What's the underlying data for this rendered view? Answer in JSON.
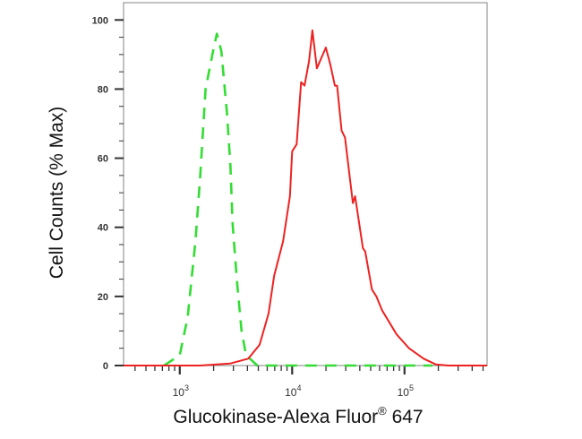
{
  "chart_data": {
    "type": "line",
    "title": "",
    "xlabel": "Glucokinase-Alexa Fluor",
    "xlabel_superscript": "®",
    "xlabel_suffix": " 647",
    "ylabel": "Cell Counts (% Max)",
    "x_scale": "log",
    "xlim": [
      316,
      543000
    ],
    "ylim": [
      0,
      105
    ],
    "grid": false,
    "legend": "none",
    "y_ticks": [
      0,
      20,
      40,
      60,
      80,
      100
    ],
    "x_ticks": [
      {
        "value": 1000,
        "base": "10",
        "exp": "3"
      },
      {
        "value": 10000,
        "base": "10",
        "exp": "4"
      },
      {
        "value": 100000,
        "base": "10",
        "exp": "5"
      }
    ],
    "series": [
      {
        "style": "dashed",
        "color": "#33dd33",
        "x": [
          724,
          1000,
          1175,
          1380,
          1514,
          1698,
          1950,
          2138,
          2344,
          2630,
          2818,
          2951,
          3236,
          3548,
          3890,
          4898,
          177828
        ],
        "y": [
          0,
          3,
          14,
          36,
          54,
          80,
          90,
          96,
          91,
          73,
          58,
          41,
          24,
          10,
          3,
          0,
          0
        ]
      },
      {
        "style": "solid",
        "color": "#ee2222",
        "x": [
          316,
          1514,
          2818,
          4074,
          5129,
          6166,
          6918,
          8318,
          9550,
          10000,
          10965,
          12023,
          12882,
          14125,
          15136,
          16596,
          19953,
          21878,
          23988,
          25119,
          27542,
          29512,
          34674,
          36308,
          42658,
          44668,
          51286,
          56234,
          63096,
          85114,
          109648,
          147911,
          190546,
          245471,
          543000
        ],
        "y": [
          0,
          0,
          0.6,
          2,
          6,
          15,
          26,
          36,
          49,
          62,
          64,
          82,
          81,
          88,
          97,
          86,
          92,
          87,
          81,
          81,
          68,
          66,
          47,
          49,
          34,
          33,
          22,
          20,
          16,
          9,
          5,
          2,
          0.3,
          0,
          0
        ]
      }
    ]
  }
}
